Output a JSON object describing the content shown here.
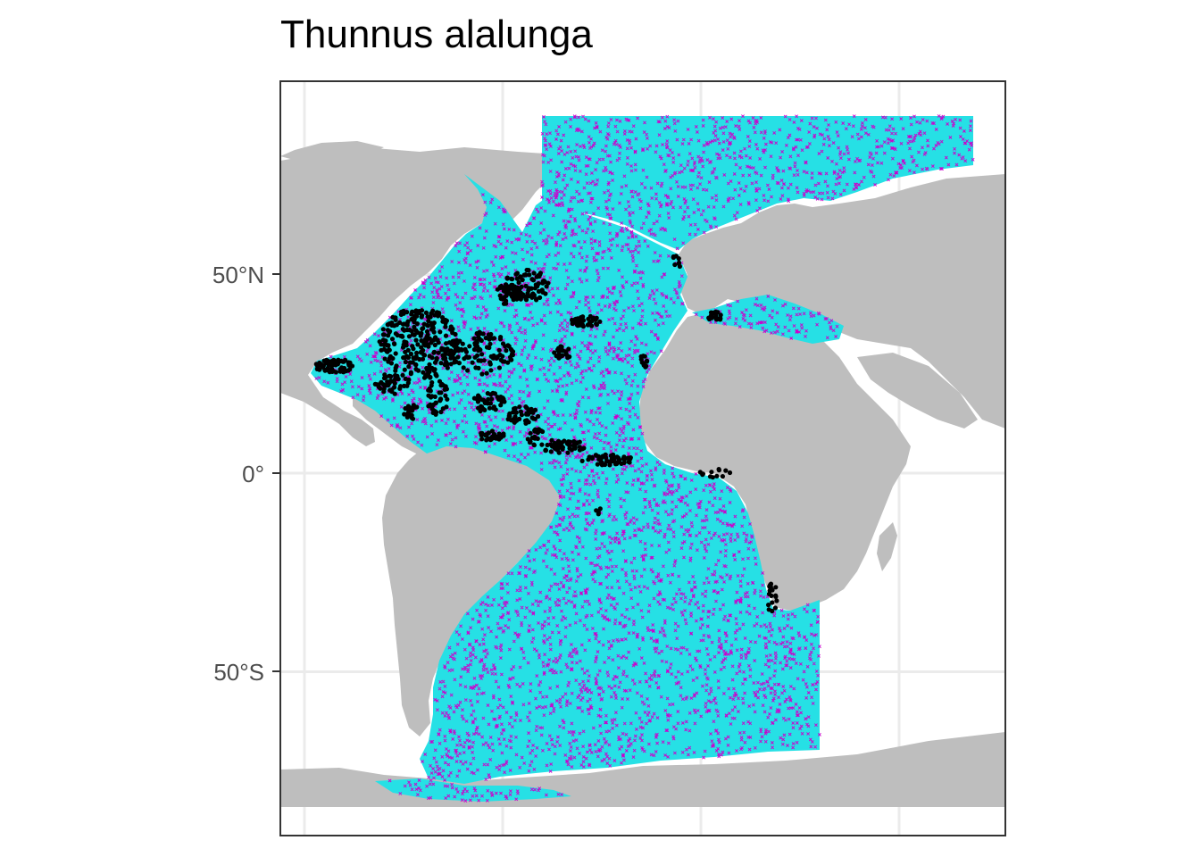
{
  "title": "Thunnus alalunga",
  "y_axis": {
    "ticks": [
      {
        "value": 50,
        "label": "50°N"
      },
      {
        "value": 0,
        "label": "0°"
      },
      {
        "value": -50,
        "label": "50°S"
      }
    ]
  },
  "x_axis": {
    "grid_longitudes": [
      -100,
      -50,
      0,
      50
    ],
    "tick_labels": []
  },
  "map_extent": {
    "lon": [
      -106,
      76
    ],
    "lat": [
      -84,
      90
    ]
  },
  "colors": {
    "land": "#bebebe",
    "study_area": "#26e0e5",
    "background_points": "#cc00cc",
    "occurrences": "#000000",
    "panel_border": "#333333",
    "grid": "#ebebeb",
    "axis_text": "#4d4d4d"
  },
  "layers": [
    {
      "name": "study-area",
      "description_color": "study_area"
    },
    {
      "name": "background-points",
      "symbol": "x"
    },
    {
      "name": "occurrence-records",
      "symbol": "dot"
    }
  ]
}
